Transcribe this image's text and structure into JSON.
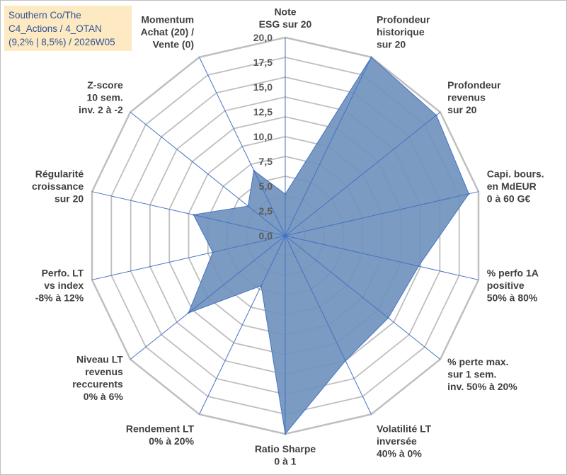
{
  "chart_data": {
    "type": "radar",
    "title_lines": [
      "Southern Co/The",
      "C4_Actions / 4_OTAN",
      "(9,2% | 8,5%) / 2026W05"
    ],
    "r_range": [
      0,
      20
    ],
    "r_ticks": [
      "0,0",
      "2,5",
      "5,0",
      "7,5",
      "10,0",
      "12,5",
      "15,0",
      "17,5",
      "20,0"
    ],
    "grid": true,
    "fill_color": "#7092be",
    "line_color": "#4472c4",
    "grid_color": "#bfbfbf",
    "axes": [
      {
        "label": [
          "Note",
          "ESG sur 20"
        ],
        "value": 4.2
      },
      {
        "label": [
          "Profondeur",
          "historique",
          "sur 20"
        ],
        "value": 20.0
      },
      {
        "label": [
          "Profondeur",
          "revenus",
          "sur 20"
        ],
        "value": 19.5
      },
      {
        "label": [
          "Capi. bours.",
          "en MdEUR",
          "0 à 60 G€"
        ],
        "value": 19.0
      },
      {
        "label": [
          "% perfo 1A",
          "positive",
          "50% à 80%"
        ],
        "value": 13.8
      },
      {
        "label": [
          "% perte max.",
          "sur 1 sem.",
          "inv. 50% à 20%"
        ],
        "value": 13.3
      },
      {
        "label": [
          "Volatilité LT",
          "inversée",
          "40% à 0%"
        ],
        "value": 14.0
      },
      {
        "label": [
          "Ratio Sharpe",
          "0 à 1"
        ],
        "value": 20.0
      },
      {
        "label": [
          "Rendement LT",
          "0% à 20%"
        ],
        "value": 5.6
      },
      {
        "label": [
          "Niveau LT",
          "revenus",
          "reccurents",
          "0% à 6%"
        ],
        "value": 12.5
      },
      {
        "label": [
          "Perfo. LT",
          "vs index",
          "-8% à 12%"
        ],
        "value": 7.5
      },
      {
        "label": [
          "Régularité",
          "croissance",
          "sur 20"
        ],
        "value": 9.5
      },
      {
        "label": [
          "Z-score",
          "10 sem.",
          "inv. 2 à -2"
        ],
        "value": 4.8
      },
      {
        "label": [
          "Momentum",
          "Achat (20) /",
          "Vente (0)"
        ],
        "value": 7.3
      }
    ]
  }
}
